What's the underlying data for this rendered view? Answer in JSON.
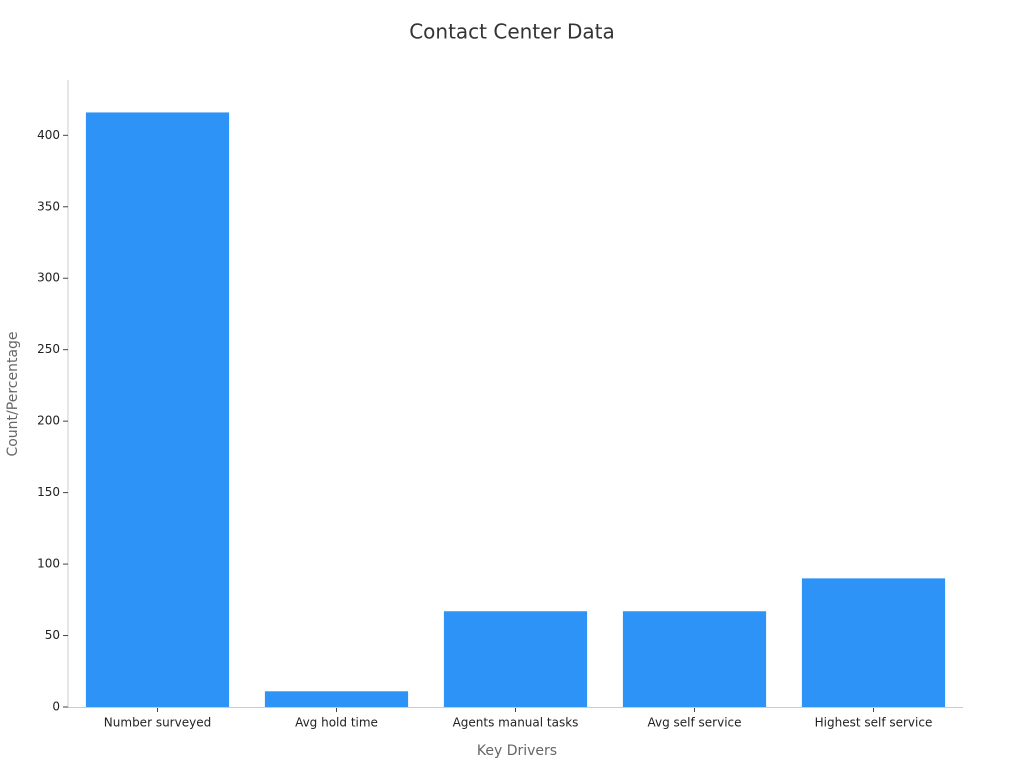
{
  "chart_data": {
    "type": "bar",
    "title": "Contact Center Data",
    "x_label": "Key Drivers",
    "y_label": "Count/Percentage",
    "categories": [
      "Number surveyed",
      "Avg hold time",
      "Agents manual tasks",
      "Avg self service",
      "Highest self service"
    ],
    "values": [
      416,
      11,
      67,
      67,
      90
    ],
    "color": "#2e93f7",
    "ylim": [
      0,
      438
    ],
    "yticks": [
      0,
      50,
      100,
      150,
      200,
      250,
      300,
      350,
      400
    ],
    "grid": false
  }
}
